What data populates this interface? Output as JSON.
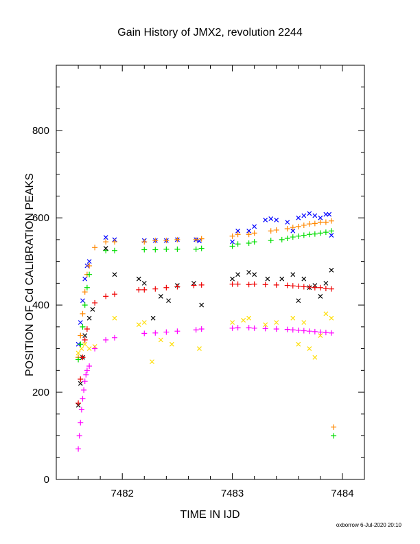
{
  "chart_data": {
    "type": "scatter",
    "title": "Gain History of JMX2, revolution 2244",
    "xlabel": "TIME IN IJD",
    "ylabel": "POSITION OF Cd CALIBRATION PEAKS",
    "xlim": [
      7481.4,
      7484.2
    ],
    "ylim": [
      0,
      950
    ],
    "xticks": [
      7482,
      7483,
      7484
    ],
    "yticks": [
      0,
      200,
      400,
      600,
      800
    ],
    "grid": false,
    "series": [
      {
        "color": "#0000ff",
        "marker": "x",
        "x": [
          7481.6,
          7481.62,
          7481.64,
          7481.66,
          7481.68,
          7481.7,
          7481.85,
          7481.93,
          7482.2,
          7482.3,
          7482.4,
          7482.5,
          7482.67,
          7482.7,
          7483.0,
          7483.05,
          7483.15,
          7483.2,
          7483.3,
          7483.35,
          7483.4,
          7483.5,
          7483.55,
          7483.6,
          7483.65,
          7483.7,
          7483.75,
          7483.8,
          7483.85,
          7483.88,
          7483.9
        ],
        "y": [
          310,
          360,
          410,
          460,
          490,
          500,
          555,
          550,
          548,
          548,
          548,
          550,
          550,
          547,
          545,
          570,
          570,
          580,
          595,
          598,
          595,
          590,
          570,
          600,
          605,
          610,
          605,
          600,
          608,
          608,
          560
        ]
      },
      {
        "color": "#ff8800",
        "marker": "+",
        "x": [
          7481.6,
          7481.62,
          7481.64,
          7481.66,
          7481.68,
          7481.7,
          7481.75,
          7481.85,
          7481.93,
          7482.2,
          7482.3,
          7482.4,
          7482.5,
          7482.67,
          7482.72,
          7483.0,
          7483.05,
          7483.15,
          7483.2,
          7483.35,
          7483.4,
          7483.5,
          7483.55,
          7483.6,
          7483.65,
          7483.7,
          7483.75,
          7483.8,
          7483.85,
          7483.9,
          7483.92
        ],
        "y": [
          280,
          330,
          380,
          430,
          470,
          490,
          532,
          545,
          545,
          545,
          548,
          548,
          550,
          550,
          552,
          558,
          562,
          562,
          565,
          570,
          572,
          575,
          578,
          580,
          583,
          586,
          587,
          590,
          590,
          593,
          120
        ]
      },
      {
        "color": "#00dd00",
        "marker": "+",
        "x": [
          7481.6,
          7481.62,
          7481.64,
          7481.66,
          7481.68,
          7481.7,
          7481.85,
          7481.93,
          7482.2,
          7482.3,
          7482.4,
          7482.5,
          7482.67,
          7482.72,
          7483.0,
          7483.05,
          7483.15,
          7483.2,
          7483.35,
          7483.45,
          7483.5,
          7483.55,
          7483.6,
          7483.65,
          7483.7,
          7483.75,
          7483.8,
          7483.85,
          7483.9,
          7483.92
        ],
        "y": [
          275,
          310,
          350,
          400,
          440,
          470,
          525,
          525,
          527,
          527,
          528,
          528,
          528,
          530,
          535,
          540,
          542,
          545,
          548,
          550,
          553,
          556,
          558,
          560,
          562,
          563,
          565,
          567,
          570,
          100
        ]
      },
      {
        "color": "#000000",
        "marker": "x",
        "x": [
          7481.6,
          7481.62,
          7481.64,
          7481.66,
          7481.7,
          7481.73,
          7481.85,
          7481.93,
          7482.15,
          7482.2,
          7482.28,
          7482.35,
          7482.42,
          7482.5,
          7482.65,
          7482.72,
          7483.0,
          7483.05,
          7483.15,
          7483.2,
          7483.32,
          7483.45,
          7483.55,
          7483.6,
          7483.65,
          7483.7,
          7483.75,
          7483.8,
          7483.85,
          7483.9
        ],
        "y": [
          170,
          220,
          280,
          330,
          370,
          390,
          530,
          470,
          460,
          450,
          370,
          420,
          410,
          445,
          450,
          400,
          460,
          470,
          475,
          470,
          460,
          460,
          470,
          410,
          460,
          440,
          445,
          420,
          450,
          480
        ]
      },
      {
        "color": "#ee0000",
        "marker": "+",
        "x": [
          7481.6,
          7481.62,
          7481.64,
          7481.66,
          7481.68,
          7481.75,
          7481.85,
          7481.93,
          7482.15,
          7482.2,
          7482.3,
          7482.4,
          7482.5,
          7482.65,
          7482.72,
          7483.0,
          7483.05,
          7483.15,
          7483.2,
          7483.3,
          7483.4,
          7483.5,
          7483.55,
          7483.6,
          7483.65,
          7483.7,
          7483.75,
          7483.8,
          7483.85,
          7483.9
        ],
        "y": [
          175,
          230,
          280,
          320,
          345,
          405,
          420,
          425,
          435,
          435,
          437,
          440,
          442,
          445,
          446,
          448,
          448,
          447,
          448,
          447,
          446,
          445,
          444,
          443,
          442,
          441,
          440,
          440,
          438,
          437
        ]
      },
      {
        "color": "#ffdd00",
        "marker": "x",
        "x": [
          7481.6,
          7481.63,
          7481.66,
          7481.7,
          7481.75,
          7481.93,
          7482.15,
          7482.2,
          7482.27,
          7482.35,
          7482.45,
          7482.7,
          7483.0,
          7483.1,
          7483.15,
          7483.3,
          7483.4,
          7483.55,
          7483.6,
          7483.65,
          7483.7,
          7483.75,
          7483.8,
          7483.85,
          7483.9
        ],
        "y": [
          290,
          300,
          310,
          300,
          305,
          370,
          355,
          360,
          270,
          320,
          310,
          300,
          360,
          365,
          370,
          355,
          360,
          370,
          310,
          360,
          300,
          280,
          330,
          380,
          370
        ]
      },
      {
        "color": "#ff00ff",
        "marker": "+",
        "x": [
          7481.6,
          7481.61,
          7481.62,
          7481.63,
          7481.64,
          7481.65,
          7481.66,
          7481.67,
          7481.68,
          7481.7,
          7481.75,
          7481.85,
          7481.93,
          7482.2,
          7482.3,
          7482.4,
          7482.5,
          7482.67,
          7482.72,
          7483.0,
          7483.05,
          7483.15,
          7483.2,
          7483.3,
          7483.4,
          7483.5,
          7483.55,
          7483.6,
          7483.65,
          7483.7,
          7483.75,
          7483.8,
          7483.85,
          7483.9
        ],
        "y": [
          70,
          100,
          130,
          160,
          185,
          205,
          225,
          240,
          250,
          260,
          300,
          320,
          325,
          335,
          336,
          338,
          340,
          343,
          345,
          347,
          348,
          348,
          347,
          346,
          345,
          344,
          343,
          342,
          341,
          340,
          339,
          338,
          337,
          336
        ]
      }
    ]
  },
  "footer": {
    "credit": "oxborrow  6-Jul-2020 20:10"
  }
}
